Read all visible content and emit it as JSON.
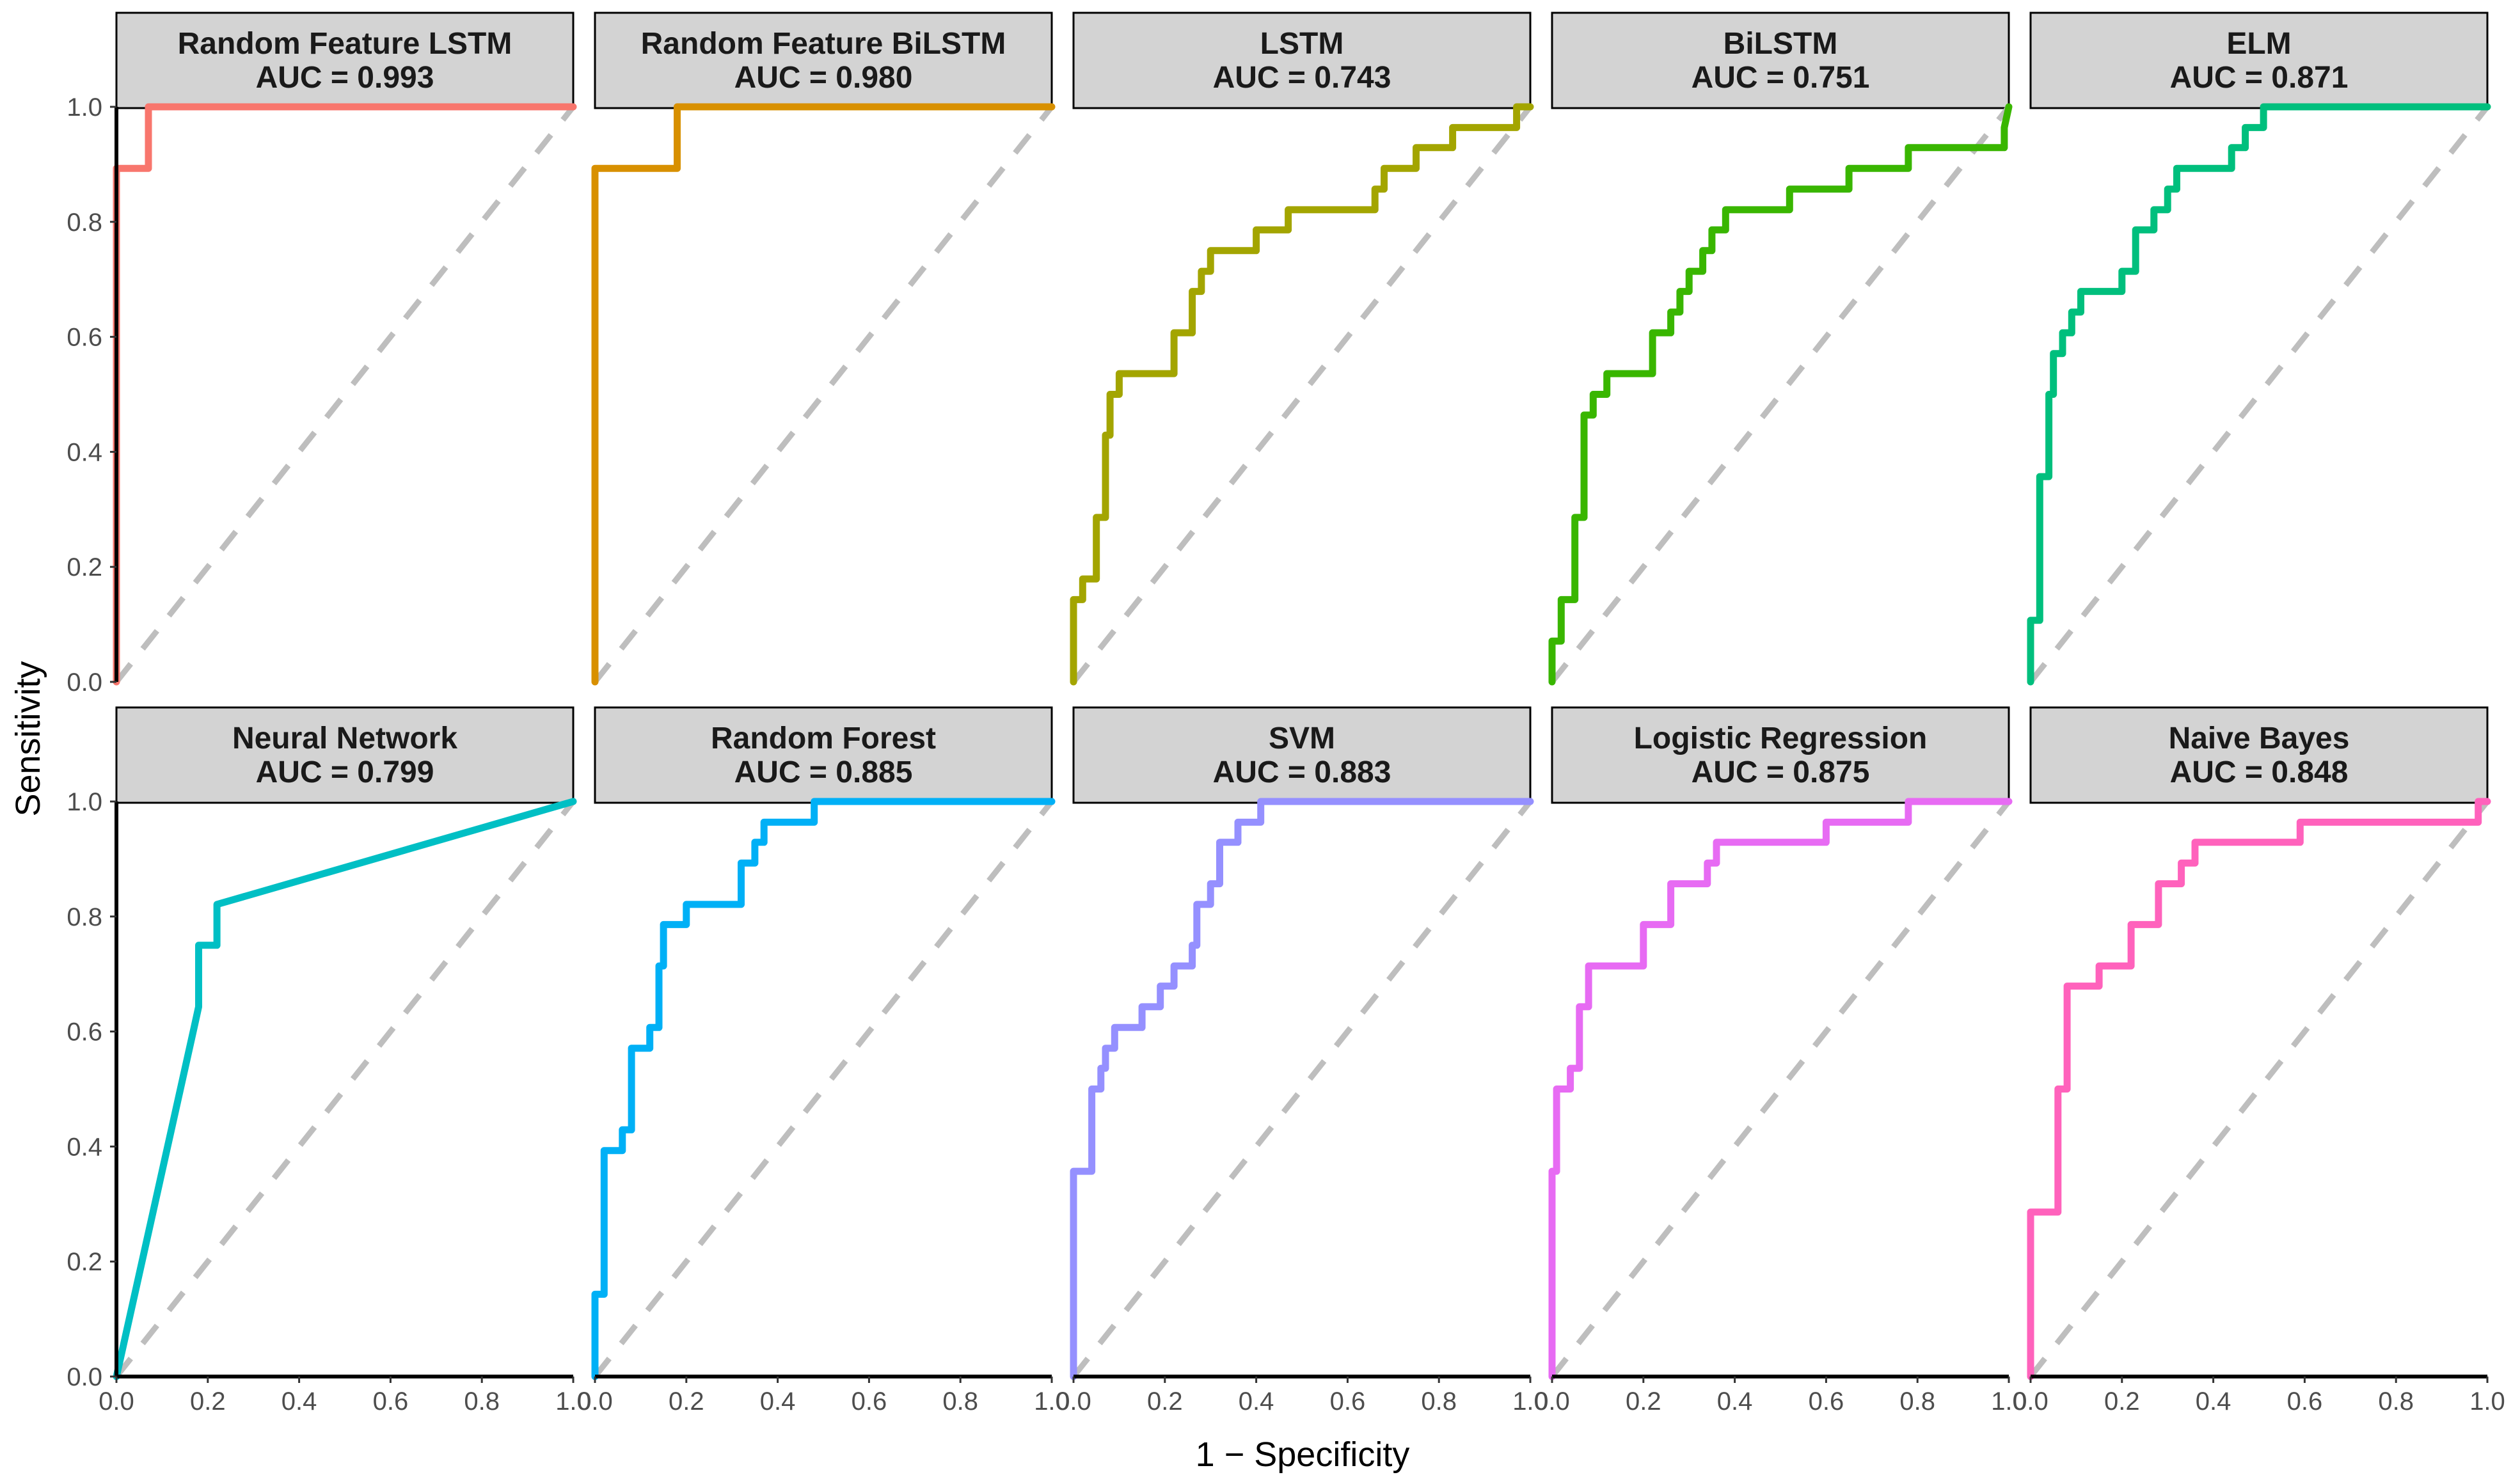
{
  "chart_data": {
    "type": "line",
    "subtype": "roc-facet-grid",
    "xlabel": "1 − Specificity",
    "ylabel": "Sensitivity",
    "xlim": [
      0,
      1
    ],
    "ylim": [
      0,
      1
    ],
    "x_ticks": [
      0.0,
      0.2,
      0.4,
      0.6,
      0.8,
      1.0
    ],
    "y_ticks": [
      0.0,
      0.2,
      0.4,
      0.6,
      0.8,
      1.0
    ],
    "x_tick_labels": [
      "0.0",
      "0.2",
      "0.4",
      "0.6",
      "0.8",
      "1.0"
    ],
    "y_tick_labels": [
      "0.0",
      "0.2",
      "0.4",
      "0.6",
      "0.8",
      "1.0"
    ],
    "facet_layout": {
      "rows": 2,
      "cols": 5
    },
    "reference_line": {
      "style": "dashed",
      "color": "#bebebe",
      "from": [
        0,
        0
      ],
      "to": [
        1,
        1
      ]
    },
    "panels": [
      {
        "name": "Random Feature LSTM",
        "auc_label": "AUC = 0.993",
        "color": "#F8766D",
        "x": [
          0,
          0,
          0.07,
          0.07,
          1
        ],
        "y": [
          0,
          0.893,
          0.893,
          1.0,
          1.0
        ]
      },
      {
        "name": "Random Feature BiLSTM",
        "auc_label": "AUC = 0.980",
        "color": "#D89000",
        "x": [
          0,
          0,
          0.18,
          0.18,
          1
        ],
        "y": [
          0,
          0.893,
          0.893,
          1.0,
          1.0
        ]
      },
      {
        "name": "LSTM",
        "auc_label": "AUC = 0.743",
        "color": "#A3A500",
        "x": [
          0,
          0,
          0.02,
          0.02,
          0.05,
          0.05,
          0.07,
          0.07,
          0.08,
          0.08,
          0.1,
          0.1,
          0.12,
          0.12,
          0.22,
          0.22,
          0.26,
          0.26,
          0.28,
          0.28,
          0.3,
          0.3,
          0.4,
          0.4,
          0.47,
          0.47,
          0.66,
          0.66,
          0.68,
          0.68,
          0.75,
          0.75,
          0.83,
          0.83,
          0.9,
          0.9,
          0.97,
          0.97,
          1.0
        ],
        "y": [
          0,
          0.143,
          0.143,
          0.179,
          0.179,
          0.286,
          0.286,
          0.429,
          0.429,
          0.5,
          0.5,
          0.536,
          0.536,
          0.536,
          0.536,
          0.607,
          0.607,
          0.679,
          0.679,
          0.714,
          0.714,
          0.75,
          0.75,
          0.786,
          0.786,
          0.821,
          0.821,
          0.857,
          0.857,
          0.893,
          0.893,
          0.929,
          0.929,
          0.964,
          0.964,
          0.964,
          0.964,
          1.0,
          1.0
        ]
      },
      {
        "name": "BiLSTM",
        "auc_label": "AUC = 0.751",
        "color": "#39B600",
        "x": [
          0,
          0,
          0.02,
          0.02,
          0.05,
          0.05,
          0.07,
          0.07,
          0.09,
          0.09,
          0.12,
          0.12,
          0.22,
          0.22,
          0.26,
          0.26,
          0.28,
          0.28,
          0.3,
          0.3,
          0.33,
          0.33,
          0.35,
          0.35,
          0.38,
          0.38,
          0.52,
          0.52,
          0.65,
          0.65,
          0.78,
          0.78,
          0.99,
          0.99,
          1.0
        ],
        "y": [
          0,
          0.071,
          0.071,
          0.143,
          0.143,
          0.286,
          0.286,
          0.464,
          0.464,
          0.5,
          0.5,
          0.536,
          0.536,
          0.607,
          0.607,
          0.643,
          0.643,
          0.679,
          0.679,
          0.714,
          0.714,
          0.75,
          0.75,
          0.786,
          0.786,
          0.821,
          0.821,
          0.857,
          0.857,
          0.893,
          0.893,
          0.929,
          0.929,
          0.964,
          1.0
        ]
      },
      {
        "name": "ELM",
        "auc_label": "AUC = 0.871",
        "color": "#00BF7D",
        "x": [
          0,
          0,
          0.02,
          0.02,
          0.04,
          0.04,
          0.05,
          0.05,
          0.07,
          0.07,
          0.09,
          0.09,
          0.11,
          0.11,
          0.2,
          0.2,
          0.23,
          0.23,
          0.27,
          0.27,
          0.3,
          0.3,
          0.32,
          0.32,
          0.44,
          0.44,
          0.47,
          0.47,
          0.49,
          0.49,
          0.51,
          0.51,
          1.0
        ],
        "y": [
          0,
          0.107,
          0.107,
          0.357,
          0.357,
          0.5,
          0.5,
          0.571,
          0.571,
          0.607,
          0.607,
          0.643,
          0.643,
          0.679,
          0.679,
          0.714,
          0.714,
          0.786,
          0.786,
          0.821,
          0.821,
          0.857,
          0.857,
          0.893,
          0.893,
          0.929,
          0.929,
          0.964,
          0.964,
          0.964,
          0.964,
          1.0,
          1.0
        ]
      },
      {
        "name": "Neural Network",
        "auc_label": "AUC = 0.799",
        "color": "#00BFC4",
        "x": [
          0,
          0.17,
          0.18,
          0.18,
          0.22,
          0.22,
          1.0
        ],
        "y": [
          0,
          0.607,
          0.643,
          0.75,
          0.75,
          0.821,
          1.0
        ]
      },
      {
        "name": "Random Forest",
        "auc_label": "AUC = 0.885",
        "color": "#00B0F6",
        "x": [
          0,
          0,
          0.02,
          0.02,
          0.06,
          0.06,
          0.08,
          0.08,
          0.12,
          0.12,
          0.14,
          0.14,
          0.15,
          0.15,
          0.2,
          0.2,
          0.32,
          0.32,
          0.35,
          0.35,
          0.37,
          0.37,
          0.46,
          0.46,
          0.48,
          0.48,
          1.0
        ],
        "y": [
          0,
          0.143,
          0.143,
          0.393,
          0.393,
          0.429,
          0.429,
          0.571,
          0.571,
          0.607,
          0.607,
          0.714,
          0.714,
          0.786,
          0.786,
          0.821,
          0.821,
          0.893,
          0.893,
          0.929,
          0.929,
          0.964,
          0.964,
          0.964,
          0.964,
          1.0,
          1.0
        ]
      },
      {
        "name": "SVM",
        "auc_label": "AUC = 0.883",
        "color": "#9590FF",
        "x": [
          0,
          0,
          0.04,
          0.04,
          0.06,
          0.06,
          0.07,
          0.07,
          0.09,
          0.09,
          0.15,
          0.15,
          0.19,
          0.19,
          0.22,
          0.22,
          0.26,
          0.26,
          0.27,
          0.27,
          0.3,
          0.3,
          0.32,
          0.32,
          0.36,
          0.36,
          0.41,
          0.41,
          0.41,
          1.0
        ],
        "y": [
          0,
          0.357,
          0.357,
          0.5,
          0.5,
          0.536,
          0.536,
          0.571,
          0.571,
          0.607,
          0.607,
          0.643,
          0.643,
          0.679,
          0.679,
          0.714,
          0.714,
          0.75,
          0.75,
          0.821,
          0.821,
          0.857,
          0.857,
          0.929,
          0.929,
          0.964,
          0.964,
          1.0,
          1.0,
          1.0
        ]
      },
      {
        "name": "Logistic Regression",
        "auc_label": "AUC = 0.875",
        "color": "#E76BF3",
        "x": [
          0,
          0,
          0.01,
          0.01,
          0.04,
          0.04,
          0.06,
          0.06,
          0.08,
          0.08,
          0.2,
          0.2,
          0.26,
          0.26,
          0.34,
          0.34,
          0.36,
          0.36,
          0.6,
          0.6,
          0.78,
          0.78,
          1.0
        ],
        "y": [
          0,
          0.357,
          0.357,
          0.5,
          0.5,
          0.536,
          0.536,
          0.643,
          0.643,
          0.714,
          0.714,
          0.786,
          0.786,
          0.857,
          0.857,
          0.893,
          0.893,
          0.929,
          0.929,
          0.964,
          0.964,
          1.0,
          1.0
        ]
      },
      {
        "name": "Naive Bayes",
        "auc_label": "AUC = 0.848",
        "color": "#FF62BC",
        "x": [
          0,
          0,
          0.06,
          0.06,
          0.08,
          0.08,
          0.1,
          0.1,
          0.15,
          0.15,
          0.22,
          0.22,
          0.28,
          0.28,
          0.31,
          0.31,
          0.33,
          0.33,
          0.36,
          0.36,
          0.59,
          0.59,
          0.98,
          0.98,
          1.0
        ],
        "y": [
          0,
          0.286,
          0.286,
          0.5,
          0.5,
          0.679,
          0.679,
          0.679,
          0.679,
          0.714,
          0.714,
          0.786,
          0.786,
          0.857,
          0.857,
          0.857,
          0.857,
          0.893,
          0.893,
          0.929,
          0.929,
          0.964,
          0.964,
          1.0,
          1.0
        ]
      }
    ]
  }
}
